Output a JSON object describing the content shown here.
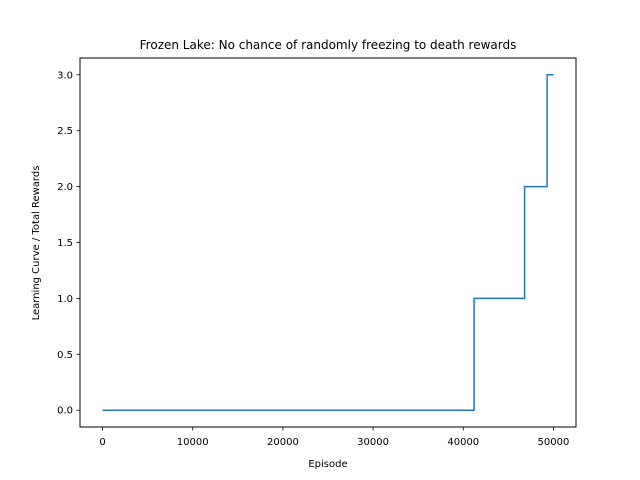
{
  "chart_data": {
    "type": "line",
    "title": "Frozen Lake: No chance of randomly freezing to death rewards",
    "xlabel": "Episode",
    "ylabel": "Learning Curve / Total Rewards",
    "xlim": [
      -2500,
      52500
    ],
    "ylim": [
      -0.15,
      3.15
    ],
    "grid": false,
    "step": true,
    "series_color": "#1f77b4",
    "x_ticks": [
      {
        "value": 0,
        "label": "0"
      },
      {
        "value": 10000,
        "label": "10000"
      },
      {
        "value": 20000,
        "label": "20000"
      },
      {
        "value": 30000,
        "label": "30000"
      },
      {
        "value": 40000,
        "label": "40000"
      },
      {
        "value": 50000,
        "label": "50000"
      }
    ],
    "y_ticks": [
      {
        "value": 0,
        "label": "0.0"
      },
      {
        "value": 0.5,
        "label": "0.5"
      },
      {
        "value": 1,
        "label": "1.0"
      },
      {
        "value": 1.5,
        "label": "1.5"
      },
      {
        "value": 2,
        "label": "2.0"
      },
      {
        "value": 2.5,
        "label": "2.5"
      },
      {
        "value": 3,
        "label": "3.0"
      }
    ],
    "series": [
      {
        "x": [
          0,
          41200,
          41200,
          46800,
          46800,
          49300,
          49300,
          50000
        ],
        "y": [
          0,
          0,
          1,
          1,
          2,
          2,
          3,
          3
        ]
      }
    ]
  }
}
